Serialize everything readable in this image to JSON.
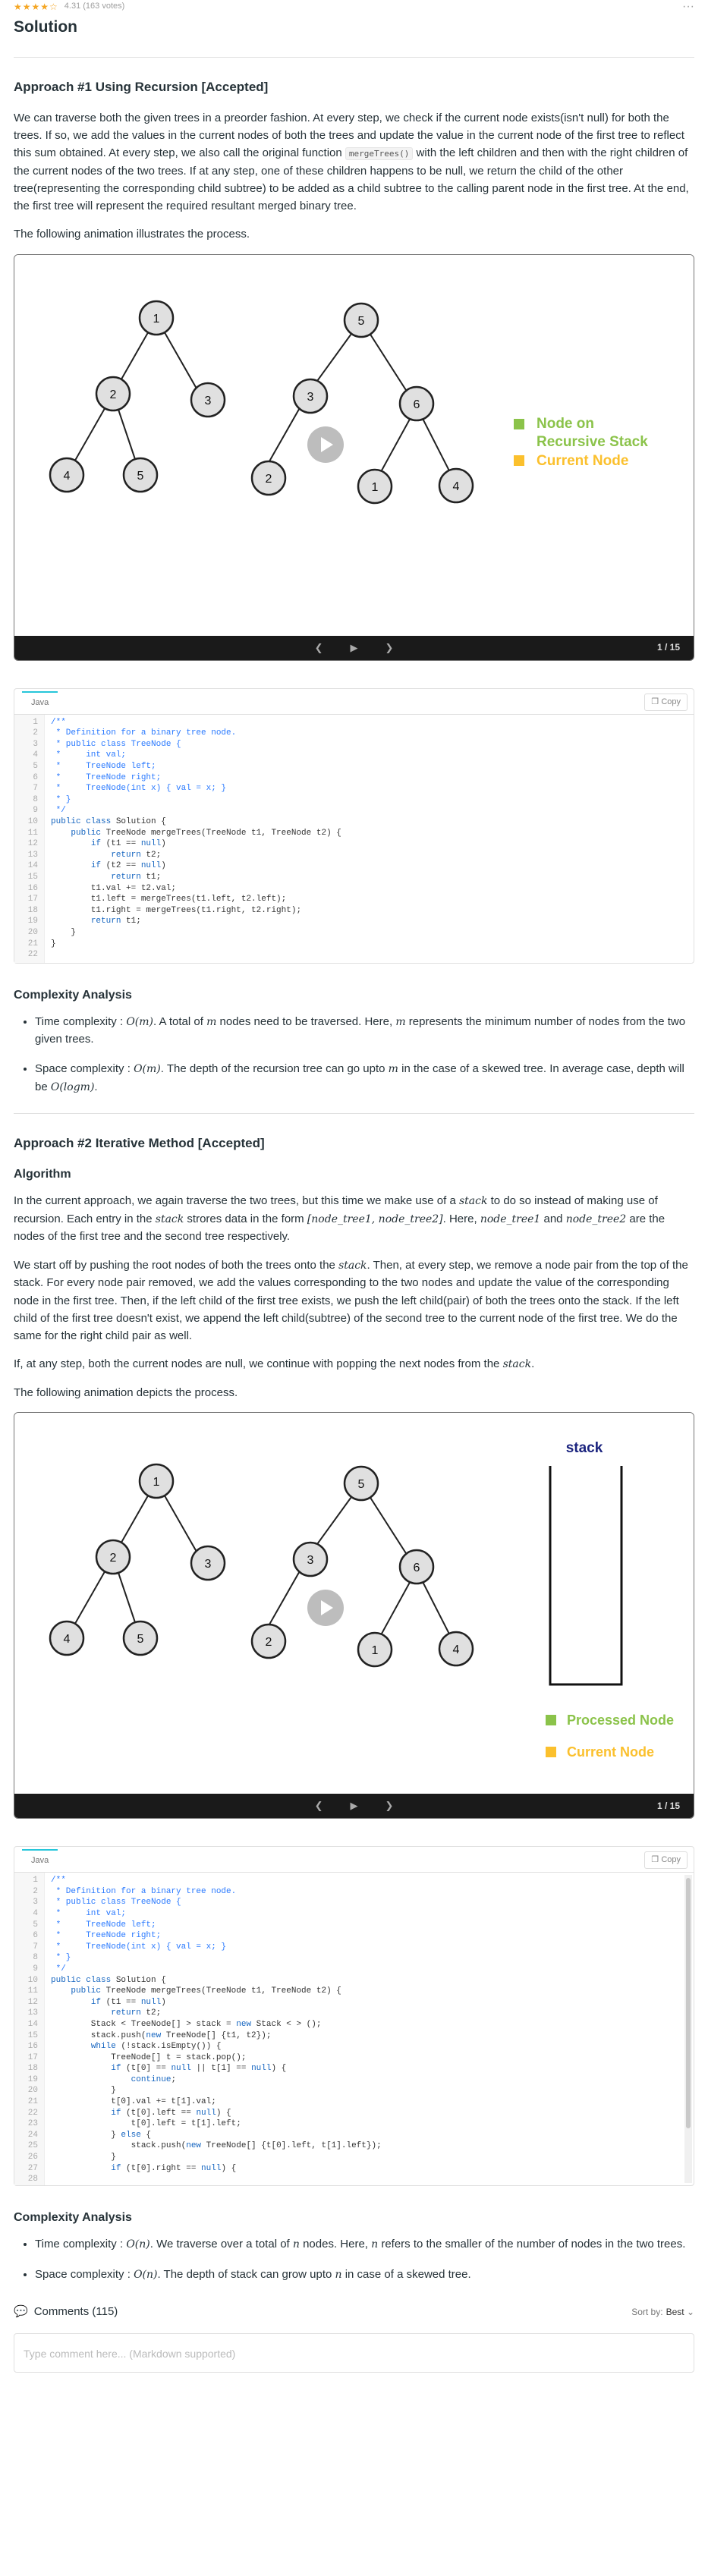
{
  "header": {
    "stars": "★★★★☆",
    "rating_text": "4.31 (163 votes)",
    "more": "···",
    "title": "Solution"
  },
  "approach1": {
    "title": "Approach #1 Using Recursion [Accepted]",
    "p1_a": "We can traverse both the given trees in a preorder fashion. At every step, we check if the current node exists(isn't null) for both the trees. If so, we add the values in the current nodes of both the trees and update the value in the current node of the first tree to reflect this sum obtained. At every step, we also call the original function ",
    "p1_code": "mergeTrees()",
    "p1_b": " with the left children and then with the right children of the current nodes of the two trees. If at any step, one of these children happens to be null, we return the child of the other tree(representing the corresponding child subtree) to be added as a child subtree to the calling parent node in the first tree. At the end, the first tree will represent the required resultant merged binary tree.",
    "p2": "The following animation illustrates the process.",
    "animation": {
      "tree1": [
        "1",
        "2",
        "3",
        "4",
        "5"
      ],
      "tree2": [
        "5",
        "3",
        "6",
        "2",
        "1",
        "4"
      ],
      "legend1": "Node on",
      "legend1b": "Recursive Stack",
      "legend2": "Current Node",
      "counter": "1 / 15",
      "colors": {
        "green": "#8bc34a",
        "yellow": "#fbc02d"
      }
    },
    "code_tab": "Java",
    "copy": "Copy",
    "complexity_title": "Complexity Analysis",
    "c1_a": "Time complexity : ",
    "c1_m": "O(m)",
    "c1_b": ". A total of ",
    "c1_m2": "m",
    "c1_c": " nodes need to be traversed. Here, ",
    "c1_m3": "m",
    "c1_d": " represents the minimum number of nodes from the two given trees.",
    "c2_a": "Space complexity : ",
    "c2_m": "O(m)",
    "c2_b": ". The depth of the recursion tree can go upto ",
    "c2_m2": "m",
    "c2_c": " in the case of a skewed tree. In average case, depth will be ",
    "c2_m3": "O(logm)",
    "c2_d": "."
  },
  "approach2": {
    "title": "Approach #2 Iterative Method [Accepted]",
    "algo": "Algorithm",
    "p1_a": "In the current approach, we again traverse the two trees, but this time we make use of a ",
    "p1_m": "stack",
    "p1_b": " to do so instead of making use of recursion. Each entry in the ",
    "p1_m2": "stack",
    "p1_c": " strores data in the form ",
    "p1_m3": "[node_tree1, node_tree2]",
    "p1_d": ". Here, ",
    "p1_m4": "node_tree1",
    "p1_e": " and ",
    "p1_m5": "node_tree2",
    "p1_f": " are the nodes of the first tree and the second tree respectively.",
    "p2_a": "We start off by pushing the root nodes of both the trees onto the ",
    "p2_m": "stack",
    "p2_b": ". Then, at every step, we remove a node pair from the top of the stack. For every node pair removed, we add the values corresponding to the two nodes and update the value of the corresponding node in the first tree. Then, if the left child of the first tree exists, we push the left child(pair) of both the trees onto the stack. If the left child of the first tree doesn't exist, we append the left child(subtree) of the second tree to the current node of the first tree. We do the same for the right child pair as well.",
    "p3_a": "If, at any step, both the current nodes are null, we continue with popping the next nodes from the ",
    "p3_m": "stack",
    "p3_b": ".",
    "p4": "The following animation depicts the process.",
    "animation": {
      "stack_label": "stack",
      "legend1": "Processed Node",
      "legend2": "Current Node",
      "counter": "1 / 15"
    },
    "code_tab": "Java",
    "copy": "Copy",
    "complexity_title": "Complexity Analysis",
    "c1_a": "Time complexity : ",
    "c1_m": "O(n)",
    "c1_b": ". We traverse over a total of ",
    "c1_m2": "n",
    "c1_c": " nodes. Here, ",
    "c1_m3": "n",
    "c1_d": " refers to the smaller of the number of nodes in the two trees.",
    "c2_a": "Space complexity : ",
    "c2_m": "O(n)",
    "c2_b": ". The depth of stack can grow upto ",
    "c2_m2": "n",
    "c2_c": " in case of a skewed tree."
  },
  "comments": {
    "label": "Comments (115)",
    "sort_label": "Sort by:",
    "sort_value": "Best",
    "placeholder": "Type comment here... (Markdown supported)"
  }
}
